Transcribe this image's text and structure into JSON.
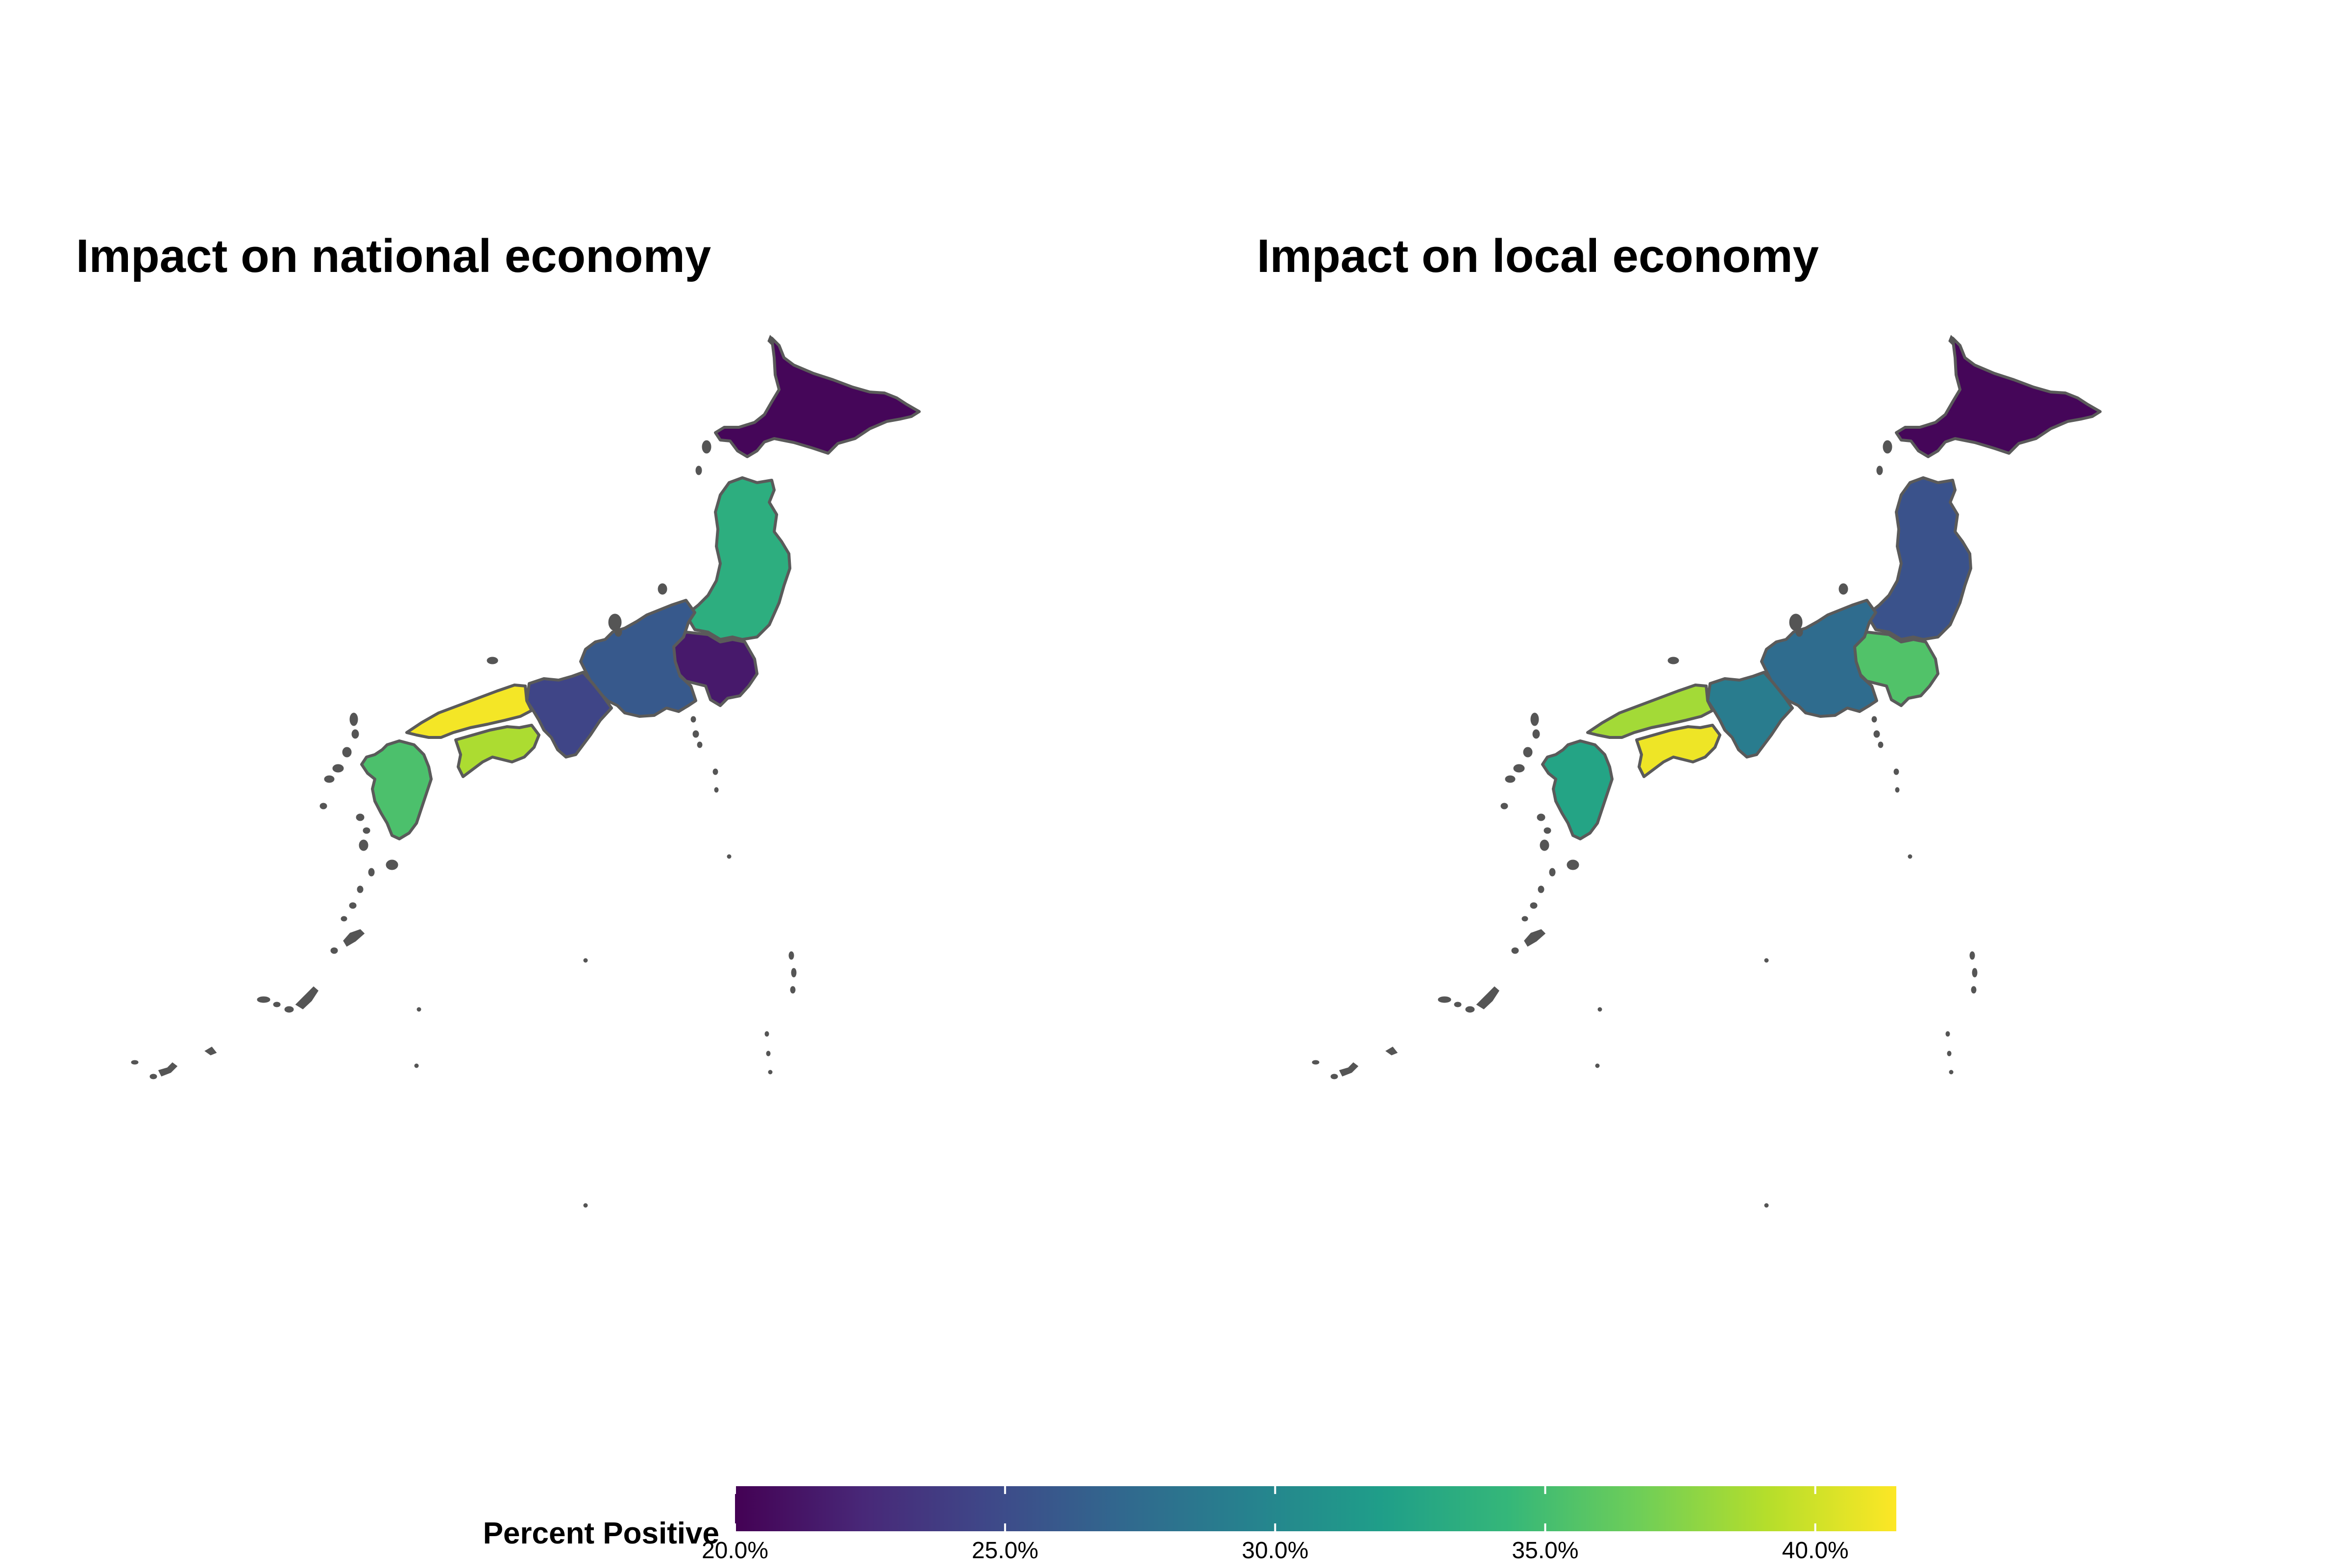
{
  "panels": [
    {
      "id": "national",
      "title": "Impact on national economy",
      "regions": [
        {
          "name": "Hokkaido",
          "percent": 20.3
        },
        {
          "name": "Tohoku",
          "percent": 33.5
        },
        {
          "name": "Kanto",
          "percent": 21.5
        },
        {
          "name": "Chubu",
          "percent": 26.0
        },
        {
          "name": "Kinki",
          "percent": 24.5
        },
        {
          "name": "Chugoku",
          "percent": 41.2
        },
        {
          "name": "Shikoku",
          "percent": 38.8
        },
        {
          "name": "Kyushu",
          "percent": 35.3
        }
      ]
    },
    {
      "id": "local",
      "title": "Impact on local economy",
      "regions": [
        {
          "name": "Hokkaido",
          "percent": 20.3
        },
        {
          "name": "Tohoku",
          "percent": 25.5
        },
        {
          "name": "Kanto",
          "percent": 35.5
        },
        {
          "name": "Chubu",
          "percent": 27.5
        },
        {
          "name": "Kinki",
          "percent": 29.0
        },
        {
          "name": "Chugoku",
          "percent": 38.5
        },
        {
          "name": "Shikoku",
          "percent": 41.0
        },
        {
          "name": "Kyushu",
          "percent": 32.5
        }
      ]
    }
  ],
  "legend": {
    "title": "Percent Positive",
    "min": 20.0,
    "max": 41.5,
    "ticks": [
      "20.0%",
      "25.0%",
      "30.0%",
      "35.0%",
      "40.0%"
    ],
    "tick_values": [
      20,
      25,
      30,
      35,
      40
    ],
    "palette": [
      "#440154",
      "#482878",
      "#3e4989",
      "#31688e",
      "#26828e",
      "#1f9e89",
      "#35b779",
      "#6ece58",
      "#b5de2b",
      "#fde725"
    ]
  },
  "colors": {
    "border": "#5a5a5a",
    "islands": "#555555"
  }
}
